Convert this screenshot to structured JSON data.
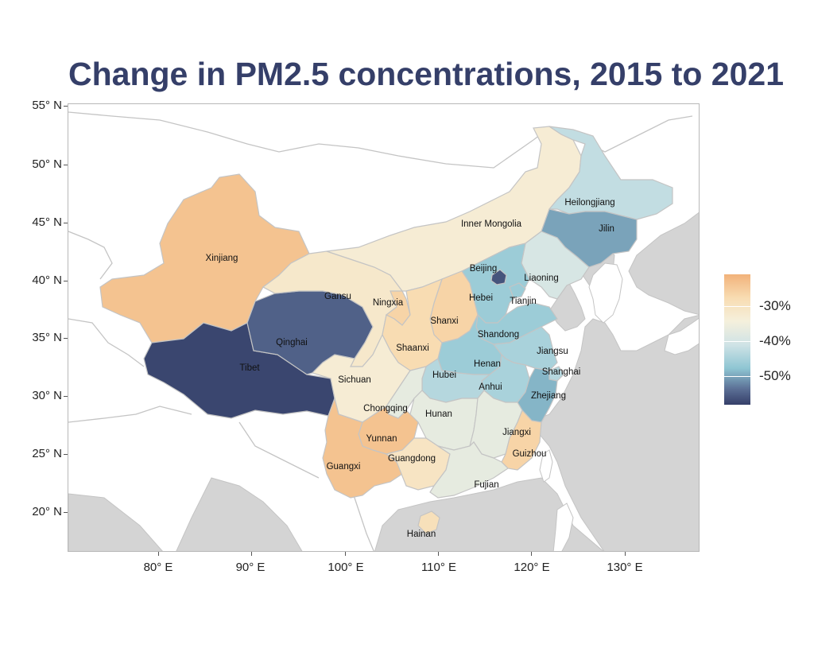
{
  "title": "Change in PM2.5 concentrations, 2015 to 2021",
  "axes": {
    "y_ticks": [
      "55° N",
      "50° N",
      "45° N",
      "40° N",
      "35° N",
      "30° N",
      "25° N",
      "20° N"
    ],
    "x_ticks": [
      "80° E",
      "90° E",
      "100° E",
      "110° E",
      "120° E",
      "130° E"
    ]
  },
  "legend": {
    "labels": [
      "-30%",
      "-40%",
      "-50%"
    ],
    "colors": [
      "#f2b27a",
      "#f5f0dc",
      "#8fc6d3",
      "#353f69"
    ]
  },
  "colors": {
    "title": "#353f69",
    "sea": "#d4d4d4",
    "land": "#ffffff",
    "border": "#c4c4c4"
  },
  "provinces": [
    {
      "id": "xinjiang",
      "label": "Xinjiang",
      "change_pct": -27
    },
    {
      "id": "tibet",
      "label": "Tibet",
      "change_pct": -56
    },
    {
      "id": "qinghai",
      "label": "Qinghai",
      "change_pct": -52
    },
    {
      "id": "gansu",
      "label": "Gansu",
      "change_pct": -33
    },
    {
      "id": "inner-mongolia",
      "label": "Inner Mongolia",
      "change_pct": -34
    },
    {
      "id": "heilongjiang",
      "label": "Heilongjiang",
      "change_pct": -41
    },
    {
      "id": "jilin",
      "label": "Jilin",
      "change_pct": -47
    },
    {
      "id": "liaoning",
      "label": "Liaoning",
      "change_pct": -39
    },
    {
      "id": "beijing",
      "label": "Beijing",
      "change_pct": -54
    },
    {
      "id": "tianjin",
      "label": "Tianjin",
      "change_pct": -44
    },
    {
      "id": "hebei",
      "label": "Hebei",
      "change_pct": -44
    },
    {
      "id": "ningxia",
      "label": "Ningxia",
      "change_pct": -29
    },
    {
      "id": "shanxi",
      "label": "Shanxi",
      "change_pct": -29
    },
    {
      "id": "shaanxi",
      "label": "Shaanxi",
      "change_pct": -30
    },
    {
      "id": "shandong",
      "label": "Shandong",
      "change_pct": -44
    },
    {
      "id": "henan",
      "label": "Henan",
      "change_pct": -44
    },
    {
      "id": "jiangsu",
      "label": "Jiangsu",
      "change_pct": -43
    },
    {
      "id": "shanghai",
      "label": "Shanghai",
      "change_pct": -42
    },
    {
      "id": "anhui",
      "label": "Anhui",
      "change_pct": -43
    },
    {
      "id": "hubei",
      "label": "Hubei",
      "change_pct": -42
    },
    {
      "id": "zhejiang",
      "label": "Zhejiang",
      "change_pct": -46
    },
    {
      "id": "sichuan",
      "label": "Sichuan",
      "change_pct": -34
    },
    {
      "id": "chongqing",
      "label": "Chongqing",
      "change_pct": -37
    },
    {
      "id": "hunan",
      "label": "Hunan",
      "change_pct": -37
    },
    {
      "id": "jiangxi",
      "label": "Jiangxi",
      "change_pct": -37
    },
    {
      "id": "guizhou",
      "label": "Guizhou",
      "change_pct": -27
    },
    {
      "id": "yunnan",
      "label": "Yunnan",
      "change_pct": -27
    },
    {
      "id": "guangxi",
      "label": "Guangxi",
      "change_pct": -32
    },
    {
      "id": "guangdong",
      "label": "Guangdong",
      "change_pct": -37
    },
    {
      "id": "fujian",
      "label": "Fujian",
      "change_pct": -29
    },
    {
      "id": "hainan",
      "label": "Hainan",
      "change_pct": -31
    }
  ]
}
